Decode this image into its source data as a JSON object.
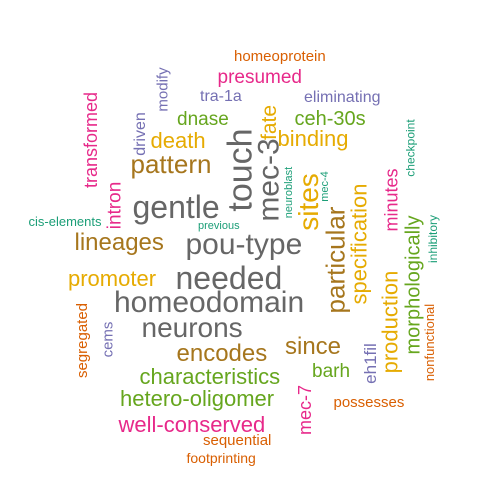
{
  "palette": {
    "teal": "#1b9e77",
    "orange": "#d95f02",
    "purple": "#7570b3",
    "magenta": "#e7298a",
    "green": "#66a61e",
    "gold": "#e6ab02",
    "brown": "#a6761d",
    "gray": "#666666"
  },
  "words": [
    {
      "text": "homeoprotein",
      "color": "orange"
    },
    {
      "text": "presumed",
      "color": "magenta"
    },
    {
      "text": "modify",
      "color": "purple"
    },
    {
      "text": "tra-1a",
      "color": "purple"
    },
    {
      "text": "eliminating",
      "color": "purple"
    },
    {
      "text": "transformed",
      "color": "magenta"
    },
    {
      "text": "driven",
      "color": "purple"
    },
    {
      "text": "dnase",
      "color": "green"
    },
    {
      "text": "fate",
      "color": "gold"
    },
    {
      "text": "ceh-30s",
      "color": "green"
    },
    {
      "text": "death",
      "color": "gold"
    },
    {
      "text": "binding",
      "color": "gold"
    },
    {
      "text": "checkpoint",
      "color": "teal"
    },
    {
      "text": "pattern",
      "color": "brown"
    },
    {
      "text": "mec-3",
      "color": "gray"
    },
    {
      "text": "touch",
      "color": "gray"
    },
    {
      "text": "neuroblast",
      "color": "teal"
    },
    {
      "text": "mec-4",
      "color": "teal"
    },
    {
      "text": "sites",
      "color": "gold"
    },
    {
      "text": "specification",
      "color": "gold"
    },
    {
      "text": "minutes",
      "color": "magenta"
    },
    {
      "text": "gentle",
      "color": "gray"
    },
    {
      "text": "intron",
      "color": "magenta"
    },
    {
      "text": "cis-elements",
      "color": "teal"
    },
    {
      "text": "previous",
      "color": "teal"
    },
    {
      "text": "morphologically",
      "color": "green"
    },
    {
      "text": "inhibitory",
      "color": "teal"
    },
    {
      "text": "lineages",
      "color": "brown"
    },
    {
      "text": "pou-type",
      "color": "gray"
    },
    {
      "text": "particular",
      "color": "brown"
    },
    {
      "text": "production",
      "color": "gold"
    },
    {
      "text": "promoter",
      "color": "gold"
    },
    {
      "text": "needed",
      "color": "gray"
    },
    {
      "text": "homeodomain",
      "color": "gray"
    },
    {
      "text": "nonfunctional",
      "color": "orange"
    },
    {
      "text": "segregated",
      "color": "orange"
    },
    {
      "text": "neurons",
      "color": "gray"
    },
    {
      "text": "cems",
      "color": "purple"
    },
    {
      "text": "since",
      "color": "brown"
    },
    {
      "text": "encodes",
      "color": "brown"
    },
    {
      "text": "eh1fil",
      "color": "purple"
    },
    {
      "text": "characteristics",
      "color": "green"
    },
    {
      "text": "barh",
      "color": "green"
    },
    {
      "text": "hetero-oligomer",
      "color": "green"
    },
    {
      "text": "mec-7",
      "color": "magenta"
    },
    {
      "text": "possesses",
      "color": "orange"
    },
    {
      "text": "well-conserved",
      "color": "magenta"
    },
    {
      "text": "sequential",
      "color": "orange"
    },
    {
      "text": "footprinting",
      "color": "orange"
    }
  ]
}
